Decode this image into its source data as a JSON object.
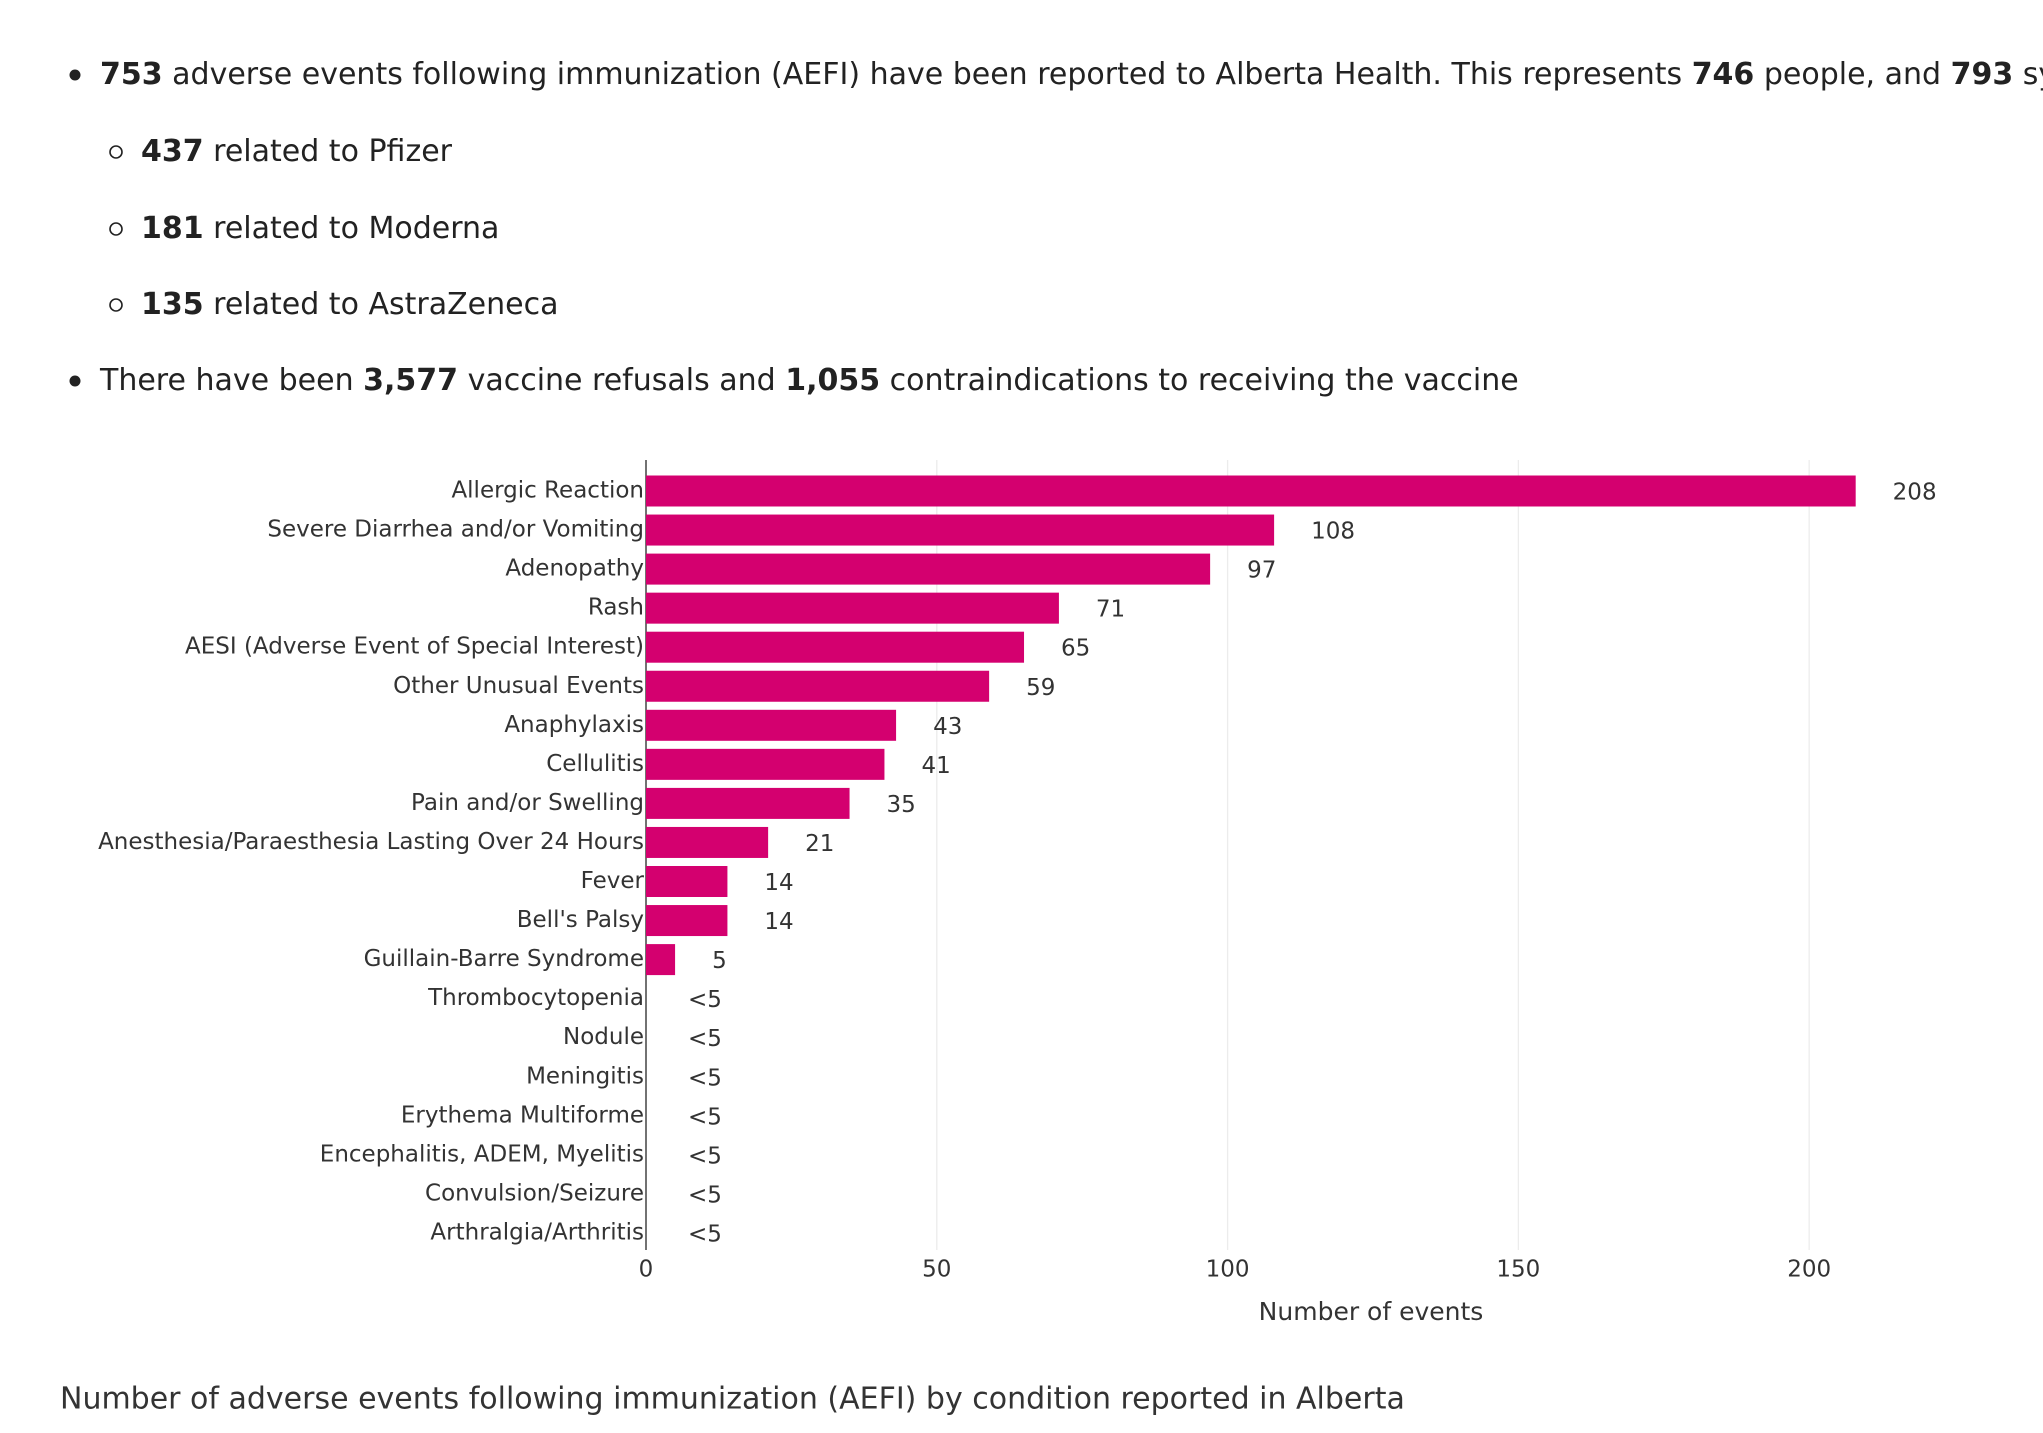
{
  "bullets": [
    {
      "segments": [
        {
          "text": "753",
          "bold": true
        },
        {
          "text": " adverse events following immunization (AEFI) have been reported to Alberta Health. This represents ",
          "bold": false
        },
        {
          "text": "746",
          "bold": true
        },
        {
          "text": " people, and ",
          "bold": false
        },
        {
          "text": "793",
          "bold": true
        },
        {
          "text": " symptoms.",
          "bold": false
        }
      ],
      "sub": [
        {
          "segments": [
            {
              "text": "437",
              "bold": true
            },
            {
              "text": " related to Pfizer",
              "bold": false
            }
          ]
        },
        {
          "segments": [
            {
              "text": "181",
              "bold": true
            },
            {
              "text": " related to Moderna",
              "bold": false
            }
          ]
        },
        {
          "segments": [
            {
              "text": "135",
              "bold": true
            },
            {
              "text": " related to AstraZeneca",
              "bold": false
            }
          ]
        }
      ]
    },
    {
      "segments": [
        {
          "text": "There have been ",
          "bold": false
        },
        {
          "text": "3,577",
          "bold": true
        },
        {
          "text": " vaccine refusals and ",
          "bold": false
        },
        {
          "text": "1,055",
          "bold": true
        },
        {
          "text": " contraindications to receiving the vaccine",
          "bold": false
        }
      ],
      "sub": []
    }
  ],
  "chart_data": {
    "type": "hbar",
    "caption": "Number of adverse events following immunization (AEFI) by condition reported in Alberta",
    "x_label": "Number of events",
    "color": "#d4006f",
    "grid": true,
    "categories": [
      "Allergic Reaction",
      "Severe Diarrhea and/or Vomiting",
      "Adenopathy",
      "Rash",
      "AESI (Adverse Event of Special Interest)",
      "Other Unusual Events",
      "Anaphylaxis",
      "Cellulitis",
      "Pain and/or Swelling",
      "Anesthesia/Paraesthesia Lasting Over 24 Hours",
      "Fever",
      "Bell's Palsy",
      "Guillain-Barre Syndrome",
      "Thrombocytopenia",
      "Nodule",
      "Meningitis",
      "Erythema Multiforme",
      "Encephalitis, ADEM, Myelitis",
      "Convulsion/Seizure",
      "Arthralgia/Arthritis"
    ],
    "values": [
      208,
      108,
      97,
      71,
      65,
      59,
      43,
      41,
      35,
      21,
      14,
      14,
      5,
      null,
      null,
      null,
      null,
      null,
      null,
      null
    ],
    "value_labels": [
      null,
      null,
      null,
      null,
      null,
      null,
      null,
      null,
      null,
      null,
      null,
      null,
      null,
      "<5",
      "<5",
      "<5",
      "<5",
      "<5",
      "<5",
      "<5"
    ],
    "xlim": [
      0,
      228
    ],
    "xticks": [
      0,
      50,
      100,
      150,
      200
    ]
  }
}
